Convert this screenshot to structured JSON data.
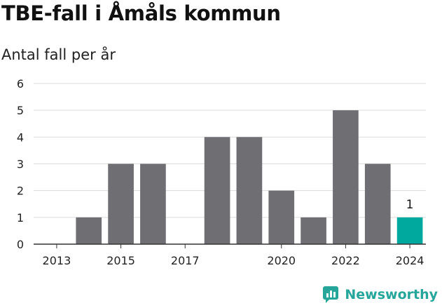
{
  "title": "TBE-fall i Åmåls kommun",
  "subtitle": "Antal fall per år",
  "brand": {
    "name": "Newsworthy",
    "icon": "newsworthy-logo-icon",
    "color": "#26a69a"
  },
  "chart_data": {
    "type": "bar",
    "title": "TBE-fall i Åmåls kommun",
    "subtitle": "Antal fall per år",
    "xlabel": "",
    "ylabel": "",
    "categories": [
      "2013",
      "2014",
      "2015",
      "2016",
      "2017",
      "2018",
      "2019",
      "2020",
      "2021",
      "2022",
      "2023",
      "2024"
    ],
    "x_tick_labels": [
      "2013",
      "2015",
      "2017",
      "2020",
      "2022",
      "2024"
    ],
    "values": [
      0,
      1,
      3,
      3,
      0,
      4,
      4,
      2,
      1,
      5,
      3,
      1
    ],
    "ylim": [
      0,
      6
    ],
    "yticks": [
      0,
      1,
      2,
      3,
      4,
      5,
      6
    ],
    "grid": true,
    "colors": {
      "default": "#6e6e73",
      "highlight": "#00a99d"
    },
    "highlight_category": "2024",
    "data_labels": [
      {
        "category": "2024",
        "text": "1"
      }
    ]
  }
}
